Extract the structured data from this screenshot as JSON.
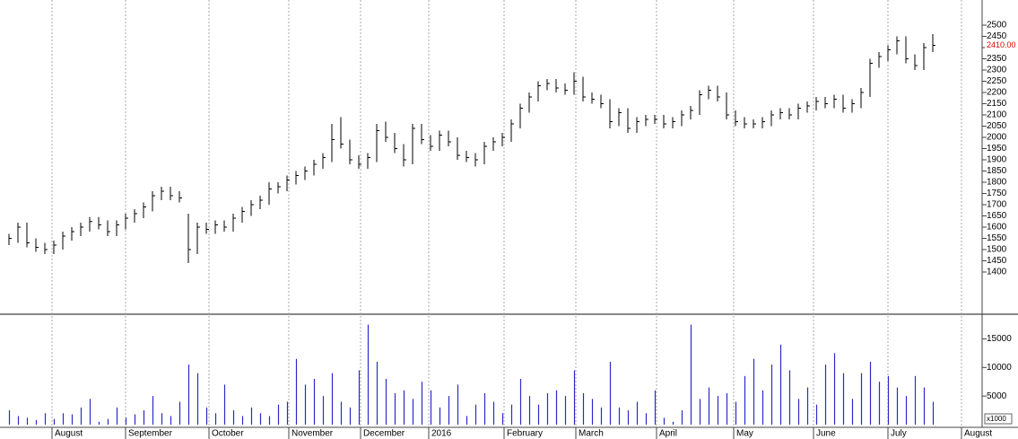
{
  "chart_data": [
    {
      "type": "hlc",
      "color": "#000000",
      "xlim": [
        -0.2,
        108.5
      ],
      "ylim": [
        1220,
        2572
      ],
      "yticks": [
        1400,
        1450,
        1500,
        1550,
        1600,
        1650,
        1700,
        1750,
        1800,
        1850,
        1900,
        1950,
        2000,
        2050,
        2100,
        2150,
        2200,
        2250,
        2300,
        2350,
        2400,
        2450,
        2500
      ],
      "last_label": {
        "value": 2410,
        "label": "2410.00"
      },
      "last_label_color": "#e00000",
      "high": [
        1570,
        1620,
        1620,
        1550,
        1530,
        1540,
        1580,
        1600,
        1620,
        1645,
        1645,
        1630,
        1630,
        1660,
        1680,
        1710,
        1760,
        1780,
        1780,
        1760,
        1660,
        1620,
        1620,
        1630,
        1630,
        1660,
        1690,
        1720,
        1740,
        1800,
        1800,
        1830,
        1850,
        1870,
        1900,
        1930,
        2060,
        2090,
        1990,
        1920,
        1930,
        2060,
        2070,
        2020,
        1970,
        2060,
        2060,
        2010,
        2030,
        2030,
        2000,
        1940,
        1930,
        1980,
        2000,
        2020,
        2080,
        2150,
        2200,
        2250,
        2260,
        2260,
        2240,
        2290,
        2270,
        2200,
        2190,
        2170,
        2130,
        2130,
        2090,
        2100,
        2100,
        2100,
        2090,
        2120,
        2140,
        2210,
        2230,
        2230,
        2200,
        2120,
        2090,
        2080,
        2090,
        2120,
        2130,
        2130,
        2150,
        2160,
        2180,
        2180,
        2190,
        2190,
        2170,
        2220,
        2350,
        2380,
        2410,
        2450,
        2450,
        2370,
        2420,
        2460
      ],
      "low": [
        1520,
        1530,
        1510,
        1490,
        1480,
        1480,
        1500,
        1540,
        1560,
        1580,
        1590,
        1560,
        1560,
        1590,
        1620,
        1640,
        1670,
        1720,
        1720,
        1710,
        1440,
        1480,
        1570,
        1570,
        1580,
        1580,
        1620,
        1650,
        1680,
        1700,
        1750,
        1760,
        1790,
        1810,
        1830,
        1860,
        1890,
        1950,
        1880,
        1860,
        1860,
        1890,
        1980,
        1930,
        1870,
        1880,
        1970,
        1940,
        1940,
        1960,
        1900,
        1890,
        1870,
        1880,
        1940,
        1960,
        1980,
        2040,
        2110,
        2160,
        2210,
        2200,
        2190,
        2190,
        2160,
        2150,
        2130,
        2040,
        2050,
        2020,
        2020,
        2050,
        2060,
        2040,
        2040,
        2050,
        2080,
        2100,
        2170,
        2160,
        2080,
        2050,
        2040,
        2040,
        2040,
        2050,
        2080,
        2080,
        2080,
        2110,
        2120,
        2130,
        2130,
        2110,
        2110,
        2130,
        2180,
        2310,
        2340,
        2370,
        2330,
        2300,
        2300,
        2380
      ],
      "close": [
        1550,
        1600,
        1530,
        1510,
        1500,
        1520,
        1560,
        1580,
        1600,
        1625,
        1610,
        1580,
        1610,
        1640,
        1660,
        1690,
        1740,
        1760,
        1740,
        1730,
        1500,
        1600,
        1590,
        1610,
        1600,
        1640,
        1670,
        1700,
        1720,
        1770,
        1780,
        1810,
        1830,
        1850,
        1880,
        1910,
        1990,
        1970,
        1900,
        1880,
        1910,
        2030,
        2000,
        1950,
        1900,
        2040,
        1990,
        1960,
        2010,
        1980,
        1920,
        1910,
        1900,
        1960,
        1980,
        2000,
        2060,
        2130,
        2180,
        2230,
        2240,
        2220,
        2210,
        2250,
        2180,
        2170,
        2150,
        2070,
        2110,
        2040,
        2070,
        2080,
        2080,
        2060,
        2070,
        2100,
        2120,
        2190,
        2210,
        2180,
        2100,
        2070,
        2060,
        2060,
        2070,
        2100,
        2110,
        2100,
        2130,
        2140,
        2160,
        2150,
        2170,
        2130,
        2150,
        2200,
        2330,
        2360,
        2390,
        2430,
        2350,
        2320,
        2400,
        2410
      ]
    },
    {
      "type": "bar",
      "color": "#2b2bc8",
      "xlim": [
        -0.2,
        108.5
      ],
      "ylim": [
        0,
        19000
      ],
      "yticks": [
        5000,
        10000,
        15000
      ],
      "unit_label": "x1000",
      "xgrid": true,
      "xticks": [
        {
          "value": 4.8,
          "label": "August"
        },
        {
          "value": 13,
          "label": "September"
        },
        {
          "value": 22.3,
          "label": "October"
        },
        {
          "value": 31.2,
          "label": "November"
        },
        {
          "value": 39.2,
          "label": "December"
        },
        {
          "value": 46.8,
          "label": "2016"
        },
        {
          "value": 55.2,
          "label": "February"
        },
        {
          "value": 63.2,
          "label": "March"
        },
        {
          "value": 72.2,
          "label": "April"
        },
        {
          "value": 80.8,
          "label": "May"
        },
        {
          "value": 89.7,
          "label": "June"
        },
        {
          "value": 98,
          "label": "July"
        },
        {
          "value": 106.2,
          "label": "August"
        }
      ],
      "values": [
        2500,
        1500,
        1200,
        800,
        2000,
        1000,
        2000,
        1800,
        3000,
        4500,
        500,
        1000,
        3000,
        1200,
        1800,
        2500,
        5000,
        2000,
        1500,
        4000,
        10500,
        9000,
        3000,
        2000,
        7000,
        2500,
        1500,
        3000,
        2000,
        1500,
        3500,
        4000,
        11500,
        7000,
        8000,
        5000,
        9000,
        4000,
        3000,
        9500,
        17500,
        11000,
        8000,
        5500,
        6000,
        4500,
        7500,
        6000,
        3000,
        5000,
        7000,
        1500,
        3500,
        5500,
        4000,
        2000,
        3500,
        8000,
        5000,
        3500,
        5500,
        6000,
        5000,
        9500,
        5500,
        4500,
        3000,
        11000,
        3000,
        2500,
        4000,
        2000,
        6000,
        1200,
        500,
        2500,
        17500,
        4500,
        6500,
        5000,
        5500,
        4000,
        8500,
        11500,
        6000,
        10500,
        14000,
        9500,
        4500,
        6500,
        3500,
        10500,
        12500,
        9000,
        4500,
        9000,
        11000,
        7500,
        8500,
        6500,
        5000,
        8500,
        6500,
        4000
      ]
    }
  ]
}
